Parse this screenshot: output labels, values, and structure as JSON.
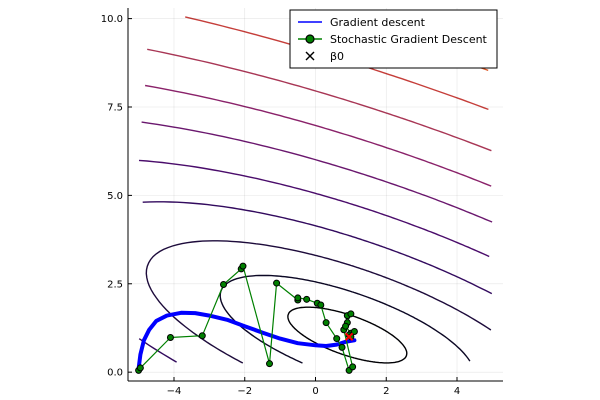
{
  "chart_data": {
    "type": "line",
    "title": "",
    "xlabel": "",
    "ylabel": "",
    "xlim": [
      -5.3,
      5.3
    ],
    "ylim": [
      -0.25,
      10.3
    ],
    "x_ticks": [
      -4,
      -2,
      0,
      2,
      4
    ],
    "x_tick_labels": [
      "−4",
      "−2",
      "0",
      "2",
      "4"
    ],
    "y_ticks": [
      0.0,
      2.5,
      5.0,
      7.5,
      10.0
    ],
    "y_tick_labels": [
      "0.0",
      "2.5",
      "5.0",
      "7.5",
      "10.0"
    ],
    "grid": true,
    "legend_position": "top-right",
    "legend": [
      {
        "label": "Gradient descent",
        "kind": "line",
        "color": "#0000ff"
      },
      {
        "label": "Stochastic Gradient Descent",
        "kind": "line-marker",
        "color": "#008000"
      },
      {
        "label": "β0",
        "kind": "x-marker",
        "color": "#000000"
      }
    ],
    "series": [
      {
        "kind": "line",
        "color": "#0000ff",
        "points": [
          [
            -5.0,
            0.1
          ],
          [
            -4.95,
            0.5
          ],
          [
            -4.85,
            0.9
          ],
          [
            -4.7,
            1.2
          ],
          [
            -4.5,
            1.45
          ],
          [
            -4.2,
            1.6
          ],
          [
            -3.8,
            1.68
          ],
          [
            -3.4,
            1.67
          ],
          [
            -3.0,
            1.6
          ],
          [
            -2.5,
            1.48
          ],
          [
            -2.0,
            1.3
          ],
          [
            -1.5,
            1.12
          ],
          [
            -1.0,
            0.95
          ],
          [
            -0.5,
            0.82
          ],
          [
            0.0,
            0.76
          ],
          [
            0.3,
            0.74
          ],
          [
            0.6,
            0.78
          ],
          [
            0.85,
            0.86
          ],
          [
            1.1,
            0.9
          ]
        ]
      },
      {
        "kind": "line-marker",
        "color": "#008000",
        "points": [
          [
            -5.0,
            0.05
          ],
          [
            -4.95,
            0.12
          ],
          [
            -4.1,
            0.98
          ],
          [
            -3.2,
            1.03
          ],
          [
            -2.6,
            2.48
          ],
          [
            -2.1,
            2.92
          ],
          [
            -2.05,
            3.0
          ],
          [
            -1.3,
            0.24
          ],
          [
            -1.1,
            2.52
          ],
          [
            -0.5,
            2.04
          ],
          [
            -0.5,
            2.1
          ],
          [
            -0.25,
            2.06
          ],
          [
            0.05,
            1.95
          ],
          [
            0.15,
            1.9
          ],
          [
            0.3,
            1.4
          ],
          [
            0.6,
            0.95
          ],
          [
            0.75,
            0.7
          ],
          [
            0.95,
            0.05
          ],
          [
            1.05,
            0.15
          ],
          [
            0.8,
            1.2
          ],
          [
            0.9,
            1.6
          ],
          [
            1.0,
            1.65
          ],
          [
            0.9,
            1.4
          ],
          [
            0.85,
            1.3
          ],
          [
            1.0,
            1.1
          ],
          [
            1.1,
            1.15
          ],
          [
            0.95,
            1.05
          ],
          [
            1.0,
            1.0
          ]
        ]
      },
      {
        "kind": "x-marker",
        "color": "#000000",
        "points": [
          [
            0.95,
            1.0
          ]
        ]
      }
    ]
  }
}
